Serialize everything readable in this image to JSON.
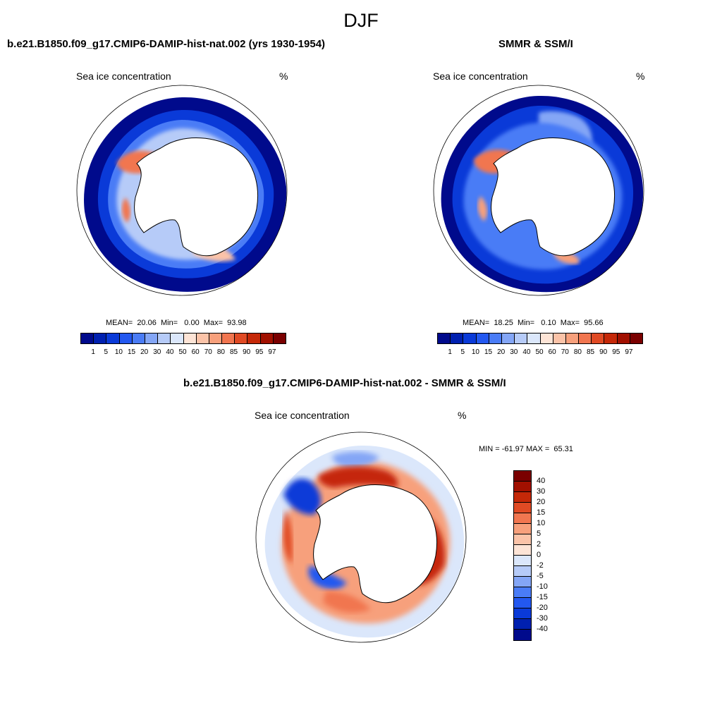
{
  "figure": {
    "title": "DJF"
  },
  "panels": [
    {
      "id": "model",
      "title": "b.e21.B1850.f09_g17.CMIP6-DAMIP-hist-nat.002 (yrs 1930-1954)",
      "left_label": "Sea ice concentration",
      "right_label": "%",
      "stats": "MEAN=  20.06  Min=   0.00  Max=  93.98",
      "mean": 20.06,
      "min": 0.0,
      "max": 93.98
    },
    {
      "id": "obs",
      "title": "SMMR & SSM/I",
      "left_label": "Sea ice concentration",
      "right_label": "%",
      "stats": "MEAN=  18.25  Min=   0.10  Max=  95.66",
      "mean": 18.25,
      "min": 0.1,
      "max": 95.66
    },
    {
      "id": "diff",
      "title": "b.e21.B1850.f09_g17.CMIP6-DAMIP-hist-nat.002 - SMMR & SSM/I",
      "left_label": "Sea ice concentration",
      "right_label": "%",
      "stats": "MIN = -61.97 MAX =  65.31",
      "min": -61.97,
      "max": 65.31
    }
  ],
  "colorbar_conc": {
    "labels": [
      "1",
      "5",
      "10",
      "15",
      "20",
      "30",
      "40",
      "50",
      "60",
      "70",
      "80",
      "85",
      "90",
      "95",
      "97"
    ],
    "colors": [
      "#000a8c",
      "#0020b0",
      "#0a3ad8",
      "#2358f0",
      "#4a7cf6",
      "#84a6f6",
      "#b6cbf8",
      "#dbe7fb",
      "#fde4d6",
      "#fbc3a8",
      "#f7a07c",
      "#f17650",
      "#e04a24",
      "#c52808",
      "#a11000",
      "#7a0000"
    ]
  },
  "colorbar_diff": {
    "labels": [
      "40",
      "30",
      "20",
      "15",
      "10",
      "5",
      "2",
      "0",
      "-2",
      "-5",
      "-10",
      "-15",
      "-20",
      "-30",
      "-40"
    ],
    "colors": [
      "#7a0000",
      "#a11000",
      "#c52808",
      "#e04a24",
      "#f17650",
      "#f7a07c",
      "#fbc3a8",
      "#fde4d6",
      "#dbe7fb",
      "#b6cbf8",
      "#84a6f6",
      "#4a7cf6",
      "#2358f0",
      "#0a3ad8",
      "#0020b0",
      "#000a8c"
    ]
  }
}
